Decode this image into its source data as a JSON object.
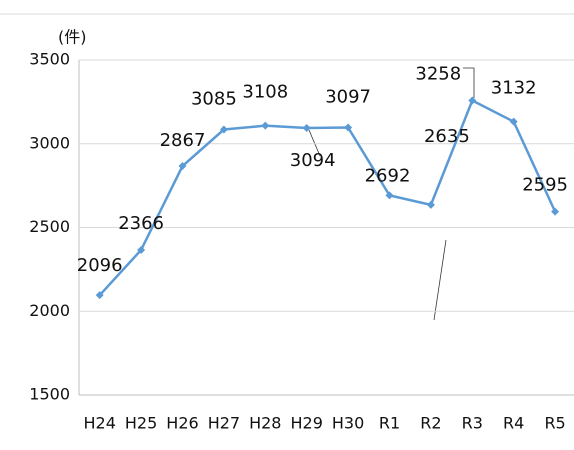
{
  "chart_data": {
    "type": "line",
    "unit_label": "(件)",
    "categories": [
      "H24",
      "H25",
      "H26",
      "H27",
      "H28",
      "H29",
      "H30",
      "R1",
      "R2",
      "R3",
      "R4",
      "R5"
    ],
    "series": [
      {
        "color": "#5b9bd5",
        "values": [
          2096,
          2366,
          2867,
          3085,
          3108,
          3094,
          3097,
          2692,
          2635,
          3258,
          3132,
          2595
        ]
      }
    ],
    "ylim": [
      1500,
      3500
    ],
    "yticks": [
      1500,
      2000,
      2500,
      3000,
      3500
    ],
    "grid": true
  }
}
